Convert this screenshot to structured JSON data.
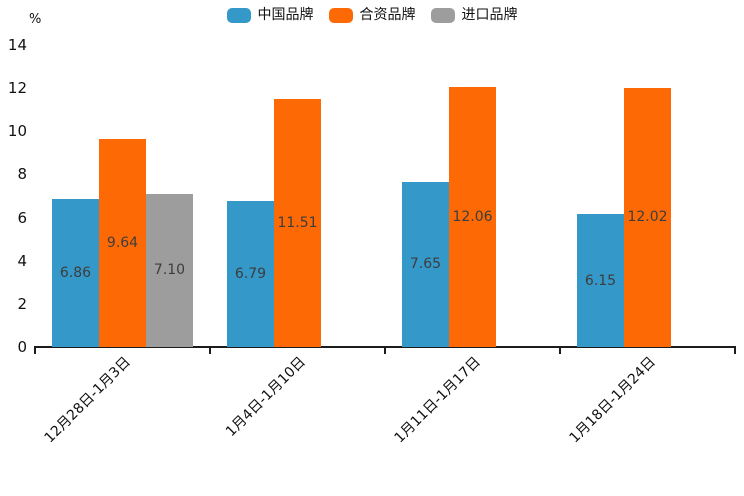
{
  "legend": {
    "items": [
      {
        "label": "中国品牌"
      },
      {
        "label": "合资品牌"
      },
      {
        "label": "进口品牌"
      }
    ]
  },
  "chart_data": {
    "type": "bar",
    "title": "",
    "xlabel": "",
    "ylabel": "%",
    "ylim": [
      0,
      14
    ],
    "yticks": [
      0,
      2,
      4,
      6,
      8,
      10,
      12,
      14
    ],
    "grid": false,
    "legend_position": "top-center",
    "value_label_format": "2-decimals",
    "categories": [
      "12月28日-1月3日",
      "1月4日-1月10日",
      "1月11日-1月17日",
      "1月18日-1月24日"
    ],
    "series": [
      {
        "name": "中国品牌",
        "color": "#3498c9",
        "values": [
          6.86,
          6.79,
          7.65,
          6.15
        ]
      },
      {
        "name": "合资品牌",
        "color": "#fd6a05",
        "values": [
          9.64,
          11.51,
          12.06,
          12.02
        ]
      },
      {
        "name": "进口品牌",
        "color": "#9d9d9d",
        "values": [
          7.1,
          null,
          null,
          null
        ]
      }
    ]
  }
}
